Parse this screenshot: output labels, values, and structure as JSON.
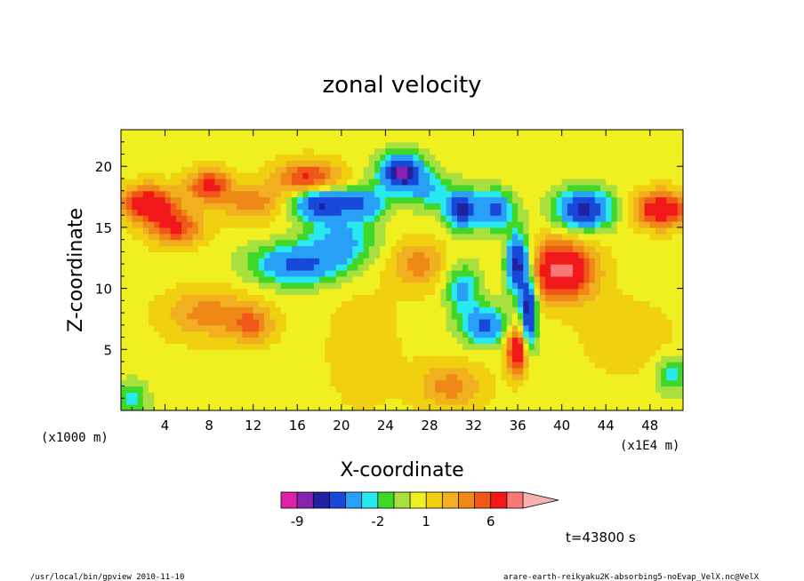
{
  "chart_data": {
    "type": "heatmap",
    "title": "zonal velocity",
    "xlabel": "X-coordinate",
    "ylabel": "Z-coordinate",
    "x_unit_label": "(x1E4 m)",
    "y_unit_label": "(x1000 m)",
    "xlim": [
      0,
      51
    ],
    "ylim": [
      0,
      23
    ],
    "x_ticks": [
      "4",
      "8",
      "12",
      "16",
      "20",
      "24",
      "28",
      "32",
      "36",
      "40",
      "44",
      "48"
    ],
    "x_tick_values": [
      4,
      8,
      12,
      16,
      20,
      24,
      28,
      32,
      36,
      40,
      44,
      48
    ],
    "y_ticks": [
      "5",
      "10",
      "15",
      "20"
    ],
    "y_tick_values": [
      5,
      10,
      15,
      20
    ],
    "colorbar": {
      "levels": [
        -10,
        -9,
        -8,
        -6,
        -4,
        -3,
        -2,
        -1,
        0,
        1,
        2,
        3,
        4,
        6,
        8,
        10
      ],
      "colors": [
        "#e020a8",
        "#8820b0",
        "#2020a0",
        "#1848d8",
        "#28a0f8",
        "#28e8f0",
        "#40d828",
        "#a8e040",
        "#f0f020",
        "#f0d010",
        "#f0b020",
        "#f08818",
        "#f05818",
        "#f01818",
        "#f87878",
        "#f8b0b0"
      ],
      "tick_labels": [
        "-9",
        "-2",
        "1",
        "6"
      ],
      "tick_values": [
        -9,
        -2,
        1,
        6
      ]
    },
    "regions": [
      {
        "x": 2.5,
        "z": 17,
        "v": 6,
        "sx": 2.5,
        "sz": 1.5
      },
      {
        "x": 5,
        "z": 15,
        "v": 4.5,
        "sx": 2.5,
        "sz": 1.5
      },
      {
        "x": 8,
        "z": 18.5,
        "v": 5,
        "sx": 2,
        "sz": 1.3
      },
      {
        "x": 12,
        "z": 17,
        "v": 3,
        "sx": 3,
        "sz": 1.5
      },
      {
        "x": 17,
        "z": 19,
        "v": 5,
        "sx": 3,
        "sz": 1.5
      },
      {
        "x": 16,
        "z": 12,
        "v": -6,
        "sx": 4,
        "sz": 1.6
      },
      {
        "x": 20,
        "z": 14,
        "v": -4,
        "sx": 3,
        "sz": 2
      },
      {
        "x": 18,
        "z": 17,
        "v": -8,
        "sx": 2.5,
        "sz": 1.3
      },
      {
        "x": 22,
        "z": 17,
        "v": -5,
        "sx": 2,
        "sz": 1.3
      },
      {
        "x": 25.5,
        "z": 19.5,
        "v": -9,
        "sx": 2,
        "sz": 1.5
      },
      {
        "x": 28,
        "z": 18,
        "v": -3,
        "sx": 2,
        "sz": 1.5
      },
      {
        "x": 31,
        "z": 16.5,
        "v": -8,
        "sx": 1.5,
        "sz": 1.5
      },
      {
        "x": 34,
        "z": 16.5,
        "v": -6,
        "sx": 1.5,
        "sz": 1.5
      },
      {
        "x": 42,
        "z": 16.5,
        "v": -8,
        "sx": 2.5,
        "sz": 1.6
      },
      {
        "x": 49,
        "z": 16.5,
        "v": 6,
        "sx": 2.5,
        "sz": 1.5
      },
      {
        "x": 40,
        "z": 11.5,
        "v": 7,
        "sx": 3,
        "sz": 2.5
      },
      {
        "x": 36,
        "z": 12,
        "v": -9,
        "sx": 1,
        "sz": 2.5
      },
      {
        "x": 37,
        "z": 8,
        "v": -9,
        "sx": 0.7,
        "sz": 3
      },
      {
        "x": 36,
        "z": 5,
        "v": 7,
        "sx": 1,
        "sz": 2
      },
      {
        "x": 33,
        "z": 7,
        "v": -6,
        "sx": 2,
        "sz": 1.5
      },
      {
        "x": 31,
        "z": 10,
        "v": -4,
        "sx": 1.5,
        "sz": 2
      },
      {
        "x": 22,
        "z": 5,
        "v": 1,
        "sx": 4,
        "sz": 6
      },
      {
        "x": 8,
        "z": 8,
        "v": 3,
        "sx": 4,
        "sz": 2
      },
      {
        "x": 12,
        "z": 7,
        "v": 3,
        "sx": 2,
        "sz": 1.5
      },
      {
        "x": 3,
        "z": 4,
        "v": 0.2,
        "sx": 6,
        "sz": 4
      },
      {
        "x": 1,
        "z": 1,
        "v": -3,
        "sx": 1.5,
        "sz": 1.5
      },
      {
        "x": 50,
        "z": 3,
        "v": -3,
        "sx": 1.5,
        "sz": 1.5
      },
      {
        "x": 46,
        "z": 6,
        "v": 1.5,
        "sx": 4,
        "sz": 3
      },
      {
        "x": 27,
        "z": 12,
        "v": 3,
        "sx": 2.5,
        "sz": 2
      },
      {
        "x": 30,
        "z": 2,
        "v": 3,
        "sx": 3,
        "sz": 2
      }
    ],
    "background_value": -0.5
  },
  "time_label": "t=43800 s",
  "footer_left": "/usr/local/bin/gpview  2010-11-10",
  "footer_right": "arare-earth-reikyaku2K-absorbing5-noEvap_VelX.nc@VelX"
}
